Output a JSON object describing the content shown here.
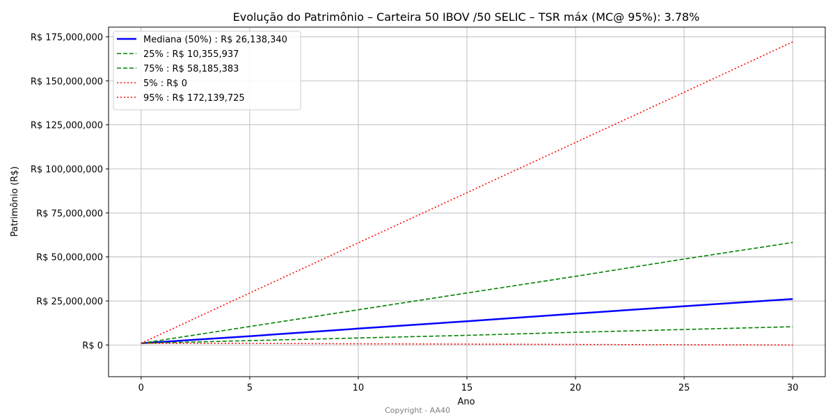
{
  "chart_data": {
    "type": "line",
    "title": "Evolução do Patrimônio – Carteira 50 IBOV /50 SELIC – TSR máx (MC@ 95%): 3.78%",
    "xlabel": "Ano",
    "ylabel": "Patrimônio (R$)",
    "xlim": [
      -1.5,
      31.5
    ],
    "ylim": [
      -18000000,
      180500000
    ],
    "x_ticks": [
      0,
      5,
      10,
      15,
      20,
      25,
      30
    ],
    "x_tick_labels": [
      "0",
      "5",
      "10",
      "15",
      "20",
      "25",
      "30"
    ],
    "y_ticks": [
      0,
      25000000,
      50000000,
      75000000,
      100000000,
      125000000,
      150000000,
      175000000
    ],
    "y_tick_labels": [
      "R$ 0",
      "R$ 25,000,000",
      "R$ 50,000,000",
      "R$ 75,000,000",
      "R$ 100,000,000",
      "R$ 125,000,000",
      "R$ 150,000,000",
      "R$ 175,000,000"
    ],
    "grid": true,
    "legend_position": "top-left",
    "x": [
      0,
      5,
      10,
      15,
      20,
      25,
      30
    ],
    "series": [
      {
        "name": "Mediana (50%) : R$ 26,138,340",
        "color": "#0000ff",
        "style": "solid",
        "values": [
          1000000,
          5000000,
          9300000,
          13500000,
          17800000,
          22000000,
          26138340
        ]
      },
      {
        "name": "25% : R$ 10,355,937",
        "color": "#008000",
        "style": "dashed",
        "values": [
          1000000,
          2500000,
          4000000,
          5500000,
          7200000,
          8800000,
          10355937
        ]
      },
      {
        "name": "75% : R$ 58,185,383",
        "color": "#008000",
        "style": "dashed",
        "values": [
          1000000,
          10500000,
          20000000,
          29500000,
          39000000,
          48800000,
          58185383
        ]
      },
      {
        "name": "5% : R$ 0",
        "color": "#ff0000",
        "style": "dotted",
        "values": [
          1000000,
          900000,
          700000,
          500000,
          300000,
          150000,
          0
        ]
      },
      {
        "name": "95% : R$ 172,139,725",
        "color": "#ff0000",
        "style": "dotted",
        "values": [
          1000000,
          29500000,
          58000000,
          86500000,
          115000000,
          143500000,
          172139725
        ]
      }
    ]
  },
  "footer": {
    "copyright": "Copyright - AA40"
  }
}
